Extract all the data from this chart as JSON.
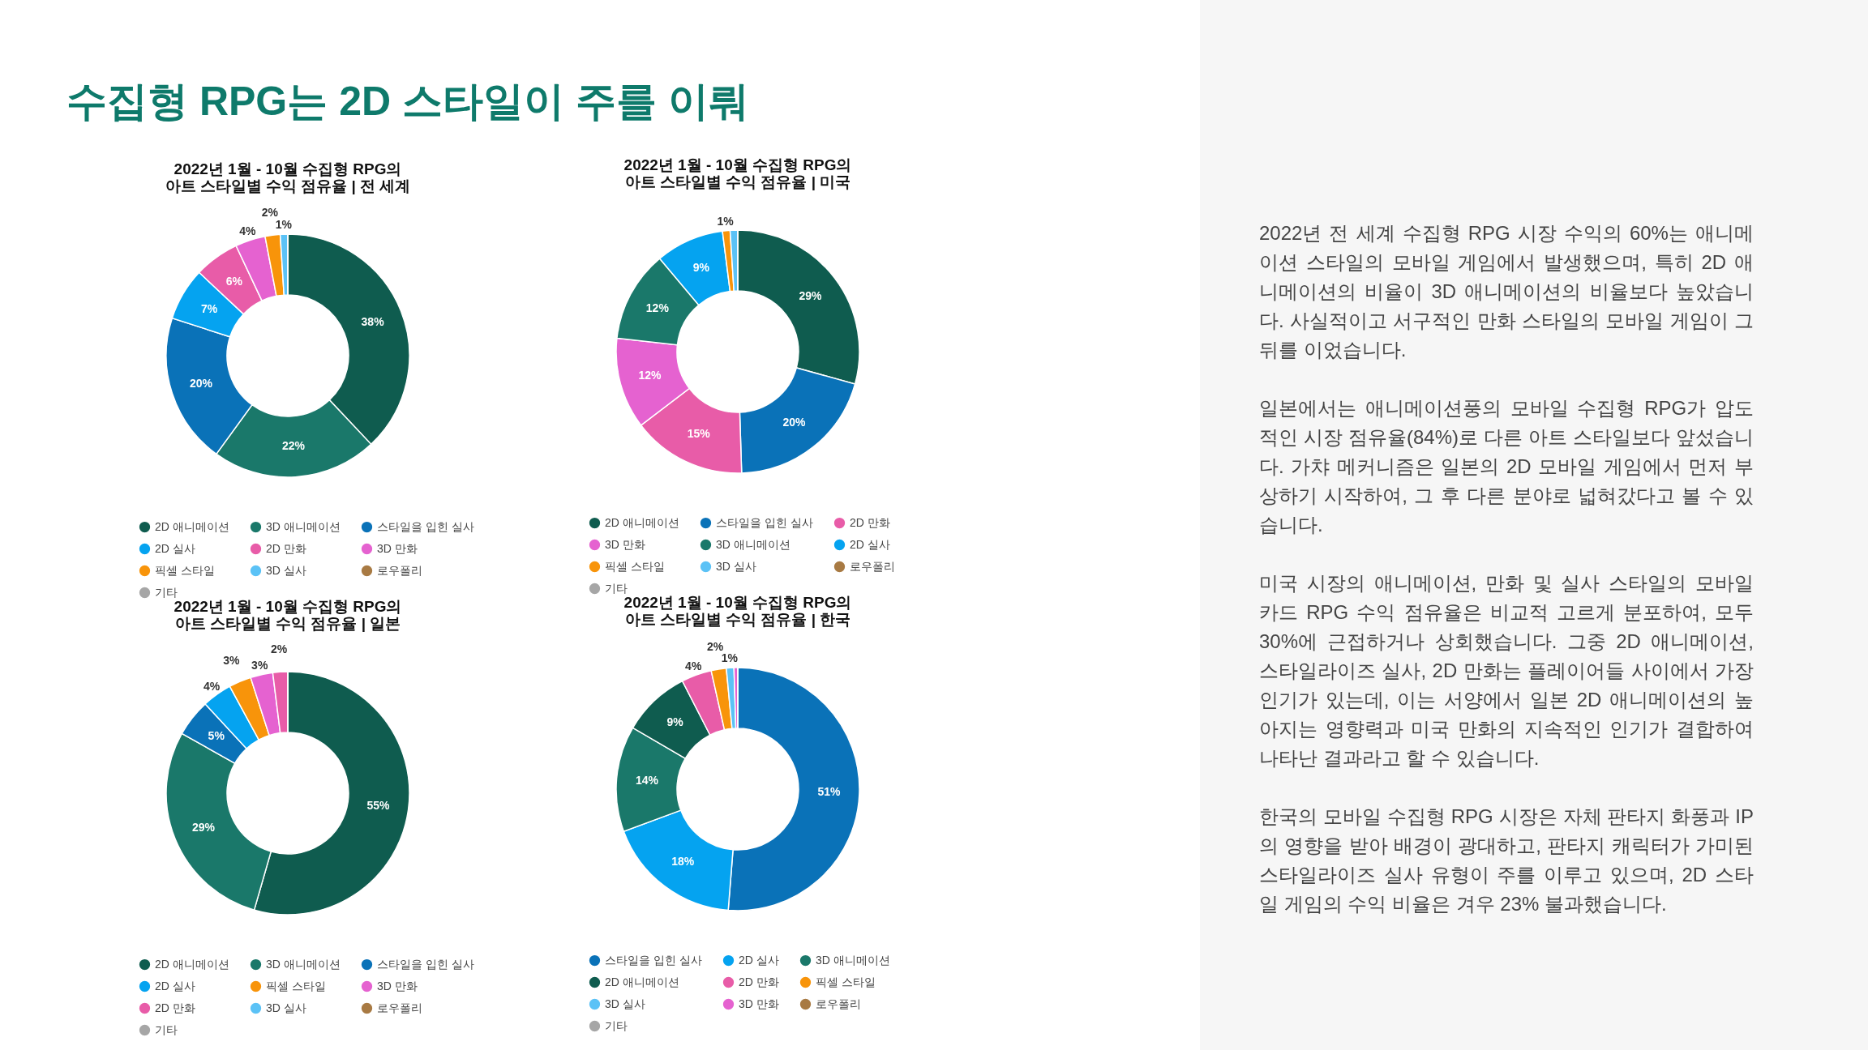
{
  "chart_data": [
    {
      "type": "donut",
      "title": "2022년 1월 - 10월 수집형 RPG의 아트 스타일별 수익 점유율 | 전 세계",
      "categories": [
        "2D 애니메이션",
        "3D 애니메이션",
        "스타일을 입힌 실사",
        "2D 실사",
        "2D 만화",
        "3D 만화",
        "픽셀 스타일",
        "3D 실사",
        "로우폴리",
        "기타"
      ],
      "values": [
        38,
        22,
        20,
        7,
        6,
        4,
        2,
        1,
        0,
        0
      ],
      "value_labels": [
        "38%",
        "22%",
        "20%",
        "7%",
        "6%",
        "4%",
        "2%",
        "1%",
        null,
        null
      ],
      "colors": [
        "#0f5c4f",
        "#1a786a",
        "#0a72b8",
        "#05a3f0",
        "#e85ca8",
        "#e562d0",
        "#f8940a",
        "#5bc2f6",
        "#a87a43",
        "#a6a6a6"
      ],
      "legend": "bottom"
    },
    {
      "type": "donut",
      "title": "2022년 1월 - 10월 수집형 RPG의 아트 스타일별 수익 점유율 | 미국",
      "categories": [
        "2D 애니메이션",
        "스타일을 입힌 실사",
        "2D 만화",
        "3D 만화",
        "3D 애니메이션",
        "2D 실사",
        "픽셀 스타일",
        "3D 실사",
        "로우폴리",
        "기타"
      ],
      "values": [
        29,
        20,
        15,
        12,
        12,
        9,
        1,
        1,
        0,
        0
      ],
      "value_labels": [
        "29%",
        "20%",
        "15%",
        "12%",
        "12%",
        "9%",
        "1%",
        null,
        null,
        null
      ],
      "colors": [
        "#0f5c4f",
        "#0a72b8",
        "#e85ca8",
        "#e562d0",
        "#1a786a",
        "#05a3f0",
        "#f8940a",
        "#5bc2f6",
        "#a87a43",
        "#a6a6a6"
      ],
      "legend": "bottom"
    },
    {
      "type": "donut",
      "title": "2022년 1월 - 10월 수집형 RPG의 아트 스타일별 수익 점유율 | 일본",
      "categories": [
        "2D 애니메이션",
        "3D 애니메이션",
        "스타일을 입힌 실사",
        "2D 실사",
        "픽셀 스타일",
        "3D 만화",
        "2D 만화",
        "3D 실사",
        "로우폴리",
        "기타"
      ],
      "values": [
        55,
        29,
        5,
        4,
        3,
        3,
        2,
        0,
        0,
        0
      ],
      "value_labels": [
        "55%",
        "29%",
        "5%",
        "4%",
        "3%",
        "3%",
        "2%",
        null,
        null,
        null
      ],
      "colors": [
        "#0f5c4f",
        "#1a786a",
        "#0a72b8",
        "#05a3f0",
        "#f8940a",
        "#e562d0",
        "#e85ca8",
        "#5bc2f6",
        "#a87a43",
        "#a6a6a6"
      ],
      "legend": "bottom"
    },
    {
      "type": "donut",
      "title": "2022년 1월 - 10월 수집형 RPG의 아트 스타일별 수익 점유율 | 한국",
      "categories": [
        "스타일을 입힌 실사",
        "2D 실사",
        "3D 애니메이션",
        "2D 애니메이션",
        "2D 만화",
        "픽셀 스타일",
        "3D 실사",
        "3D 만화",
        "로우폴리",
        "기타"
      ],
      "values": [
        51,
        18,
        14,
        9,
        4,
        2,
        1,
        0.5,
        0,
        0
      ],
      "value_labels": [
        "51%",
        "18%",
        "14%",
        "9%",
        "4%",
        "2%",
        "1%",
        null,
        null,
        null
      ],
      "colors": [
        "#0a72b8",
        "#05a3f0",
        "#1a786a",
        "#0f5c4f",
        "#e85ca8",
        "#f8940a",
        "#5bc2f6",
        "#e562d0",
        "#a87a43",
        "#a6a6a6"
      ],
      "legend": "bottom"
    },
    {
      "type": "other",
      "title": "수집형 RPG는 2D 스타일이 주를 이뤄",
      "annotations": [
        "2022년 전 세계 수집형 RPG 시장 수익의 60%는 애니메이션 스타일의 모바일 게임에서 발생했으며, 특히 2D 애니메이션의 비율이 3D 애니메이션의 비율보다 높았습니다. 사실적이고 서구적인 만화 스타일의 모바일 게임이 그 뒤를 이었습니다.",
        "일본에서는 애니메이션풍의 모바일 수집형 RPG가 압도적인 시장 점유율(84%)로 다른 아트 스타일보다 앞섰습니다. 가챠 메커니즘은 일본의 2D 모바일 게임에서 먼저 부상하기 시작하여, 그 후 다른 분야로 넓혀갔다고 볼 수 있습니다.",
        "미국 시장의 애니메이션, 만화 및 실사 스타일의 모바일 카드 RPG 수익 점유율은 비교적 고르게 분포하여, 모두 30%에 근접하거나 상회했습니다. 그중 2D 애니메이션, 스타일라이즈 실사, 2D 만화는 플레이어들 사이에서 가장 인기가 있는데, 이는 서양에서 일본 2D 애니메이션의 높아지는 영향력과 미국 만화의 지속적인 인기가 결합하여 나타난 결과라고 할 수 있습니다.",
        "한국의 모바일 수집형 RPG 시장은 자체 판타지 화풍과 IP의 영향을 받아 배경이 광대하고, 판타지 캐릭터가 가미된 스타일라이즈 실사 유형이 주를 이루고 있으며, 2D 스타일 게임의 수익 비율은 겨우 23% 불과했습니다."
      ]
    }
  ]
}
